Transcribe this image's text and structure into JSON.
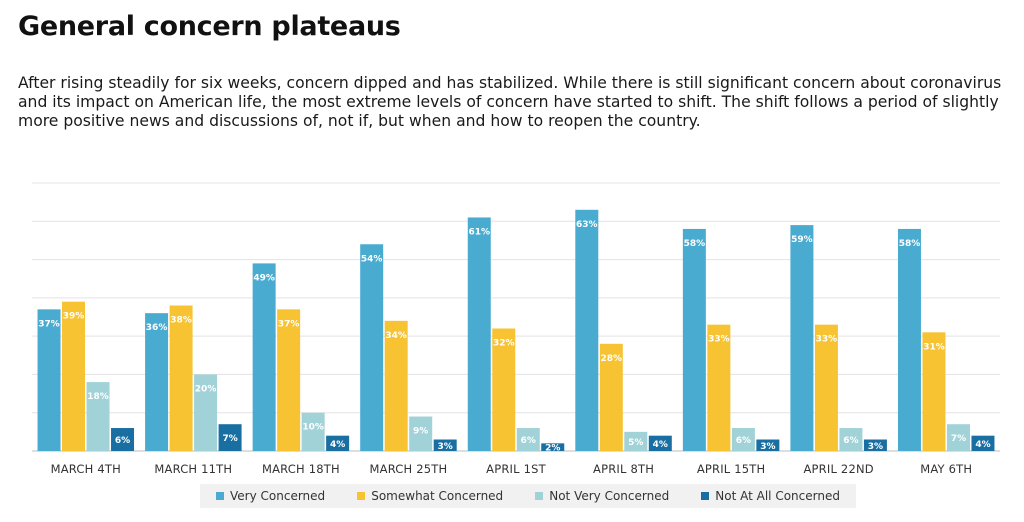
{
  "header": {
    "title": "General concern plateaus",
    "subtitle": "After rising steadily for six weeks, concern dipped and has stabilized. While there is still significant concern about coronavirus and its impact on American life, the most extreme levels of concern have started to shift. The shift follows a period of slightly more positive news and discussions of, not if, but when and how to reopen the country."
  },
  "chart_data": {
    "type": "bar",
    "categories": [
      "MARCH 4TH",
      "MARCH 11TH",
      "MARCH 18TH",
      "MARCH 25TH",
      "APRIL 1ST",
      "APRIL 8TH",
      "APRIL 15TH",
      "APRIL 22ND",
      "MAY 6TH"
    ],
    "series": [
      {
        "name": "Very Concerned",
        "color": "#4aabd1",
        "values": [
          37,
          36,
          49,
          54,
          61,
          63,
          58,
          59,
          58
        ]
      },
      {
        "name": "Somewhat Concerned",
        "color": "#f8c332",
        "values": [
          39,
          38,
          37,
          34,
          32,
          28,
          33,
          33,
          31
        ]
      },
      {
        "name": "Not Very Concerned",
        "color": "#a1d2d7",
        "values": [
          18,
          20,
          10,
          9,
          6,
          5,
          6,
          6,
          7
        ]
      },
      {
        "name": "Not At All Concerned",
        "color": "#1a6fa2",
        "values": [
          6,
          7,
          4,
          3,
          2,
          4,
          3,
          3,
          4
        ]
      }
    ],
    "ylim": [
      0,
      70
    ],
    "grid": true,
    "legend_position": "bottom"
  }
}
